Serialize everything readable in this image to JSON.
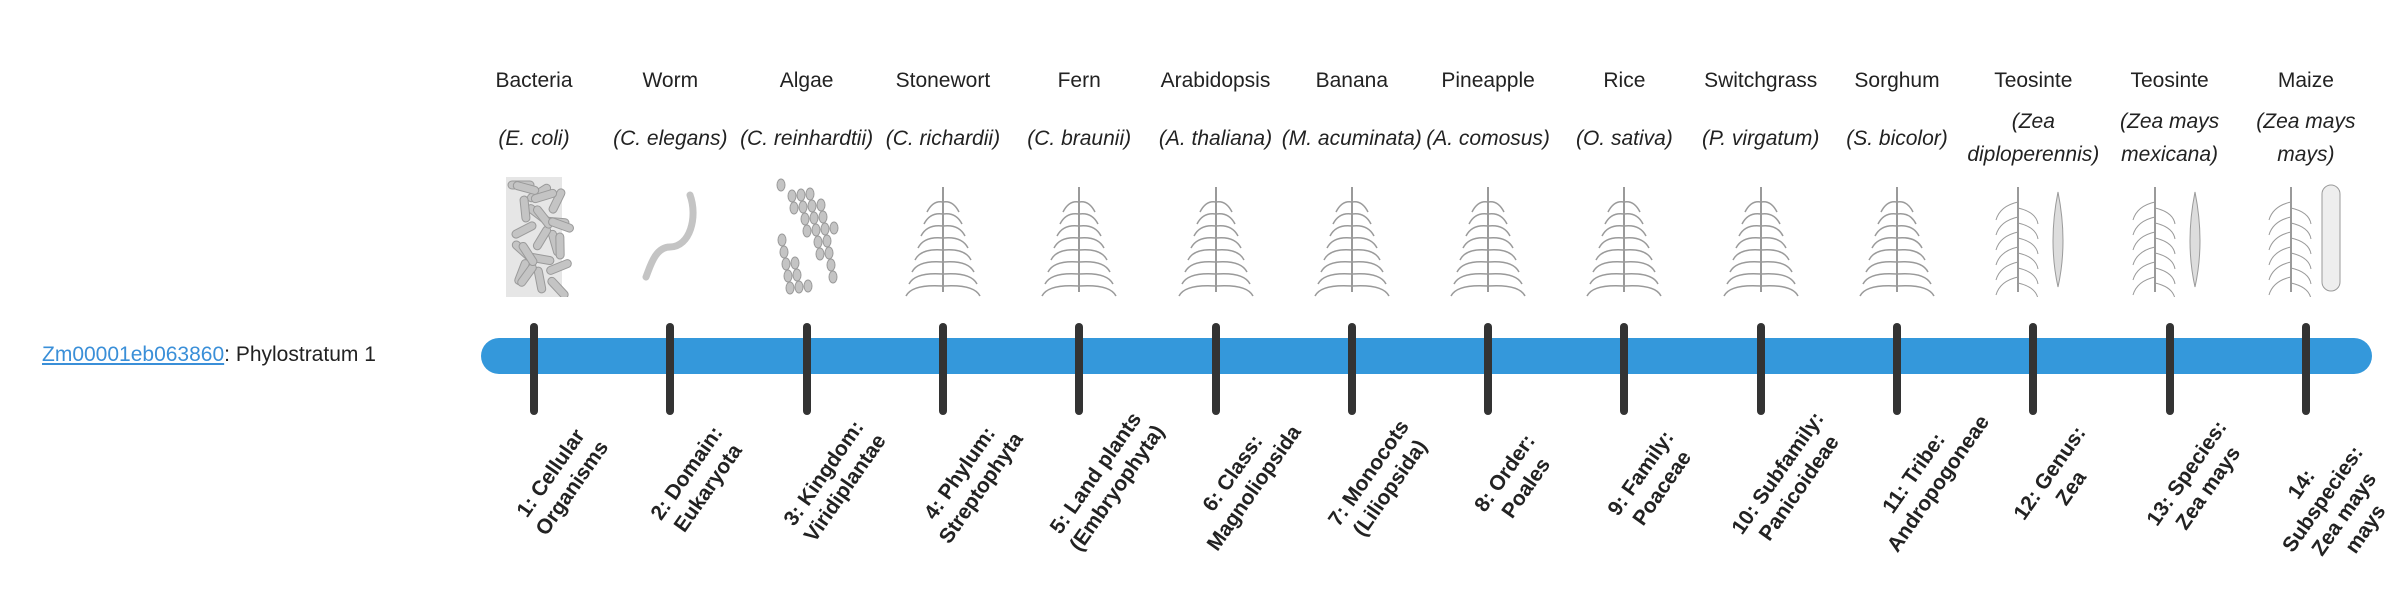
{
  "gene": {
    "id": "Zm00001eb063860",
    "suffix": ": Phylostratum 1"
  },
  "colors": {
    "bar": "#3498db",
    "tick": "#333333",
    "link": "#3a8fd8"
  },
  "strata": [
    {
      "name": "Bacteria",
      "latin": "(E. coli)",
      "icon": "bacteria-illustration",
      "label": "1: Cellular Organisms"
    },
    {
      "name": "Worm",
      "latin": "(C. elegans)",
      "icon": "worm-illustration",
      "label": "2: Domain: Eukaryota"
    },
    {
      "name": "Algae",
      "latin": "(C. reinhardtii)",
      "icon": "algae-illustration",
      "label": "3: Kingdom: Viridiplantae"
    },
    {
      "name": "Stonewort",
      "latin": "(C. richardii)",
      "icon": "stonewort-illustration",
      "label": "4: Phylum: Streptophyta"
    },
    {
      "name": "Fern",
      "latin": "(C. braunii)",
      "icon": "fern-illustration",
      "label": "5: Land plants (Embryophyta)"
    },
    {
      "name": "Arabidopsis",
      "latin": "(A. thaliana)",
      "icon": "arabidopsis-illustration",
      "label": "6: Class: Magnoliopsida"
    },
    {
      "name": "Banana",
      "latin": "(M. acuminata)",
      "icon": "banana-illustration",
      "label": "7: Monocots (Liliopsida)"
    },
    {
      "name": "Pineapple",
      "latin": "(A. comosus)",
      "icon": "pineapple-illustration",
      "label": "8: Order: Poales"
    },
    {
      "name": "Rice",
      "latin": "(O. sativa)",
      "icon": "rice-illustration",
      "label": "9: Family: Poaceae"
    },
    {
      "name": "Switchgrass",
      "latin": "(P. virgatum)",
      "icon": "switchgrass-illustration",
      "label": "10: Subfamily: Panicoideae"
    },
    {
      "name": "Sorghum",
      "latin": "(S. bicolor)",
      "icon": "sorghum-illustration",
      "label": "11: Tribe: Andropogoneae"
    },
    {
      "name": "Teosinte",
      "latin": "(Zea diploperennis)",
      "icon": "teosinte-illustration",
      "label": "12: Genus: Zea"
    },
    {
      "name": "Teosinte",
      "latin": "(Zea mays mexicana)",
      "icon": "teosinte-illustration",
      "label": "13: Species: Zea mays"
    },
    {
      "name": "Maize",
      "latin": "(Zea mays mays)",
      "icon": "maize-illustration",
      "label": "14: Subspecies: Zea mays mays"
    }
  ]
}
